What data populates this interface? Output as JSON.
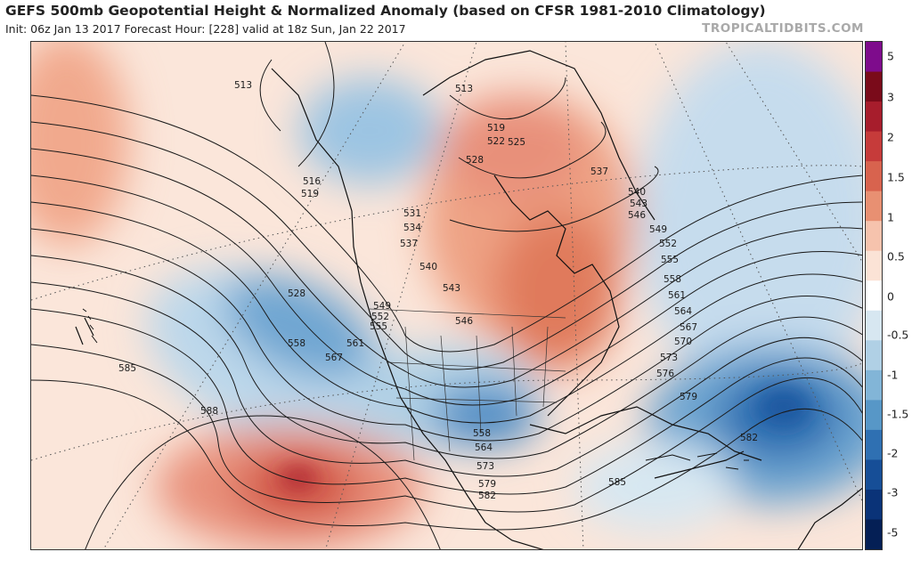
{
  "header": {
    "title": "GEFS 500mb Geopotential Height & Normalized Anomaly (based on CFSR 1981-2010 Climatology)",
    "subtitle": "Init: 06z Jan 13 2017   Forecast Hour: [228]   valid at 18z Sun, Jan 22 2017",
    "credit": "TROPICALTIDBITS.COM"
  },
  "colorbar": {
    "labels": [
      "5",
      "3",
      "2",
      "1.5",
      "1",
      "0.5",
      "0",
      "-0.5",
      "-1",
      "-1.5",
      "-2",
      "-3",
      "-5"
    ],
    "colors": [
      "#7e0c8c",
      "#7a0b1a",
      "#a71d2c",
      "#c63b3a",
      "#d8634e",
      "#e89072",
      "#f6c3ad",
      "#fbe3d6",
      "#ffffff",
      "#d7e7f1",
      "#b0d0e5",
      "#82b5d7",
      "#5797c7",
      "#2f70b2",
      "#164e97",
      "#0a3378",
      "#041f55"
    ]
  },
  "contours": {
    "labels": [
      "513",
      "519",
      "522",
      "525",
      "528",
      "537",
      "540",
      "543",
      "546",
      "549",
      "552",
      "555",
      "558",
      "561",
      "564",
      "567",
      "570",
      "573",
      "576",
      "579",
      "582",
      "585",
      "513",
      "516",
      "519",
      "528",
      "531",
      "534",
      "537",
      "540",
      "543",
      "546",
      "549",
      "552",
      "555",
      "558",
      "561",
      "567",
      "558",
      "564",
      "573",
      "579",
      "582",
      "585",
      "588",
      "585"
    ]
  },
  "colors": {
    "coast": "#111111",
    "contour": "#1a1a1a",
    "grid": "#555555"
  }
}
